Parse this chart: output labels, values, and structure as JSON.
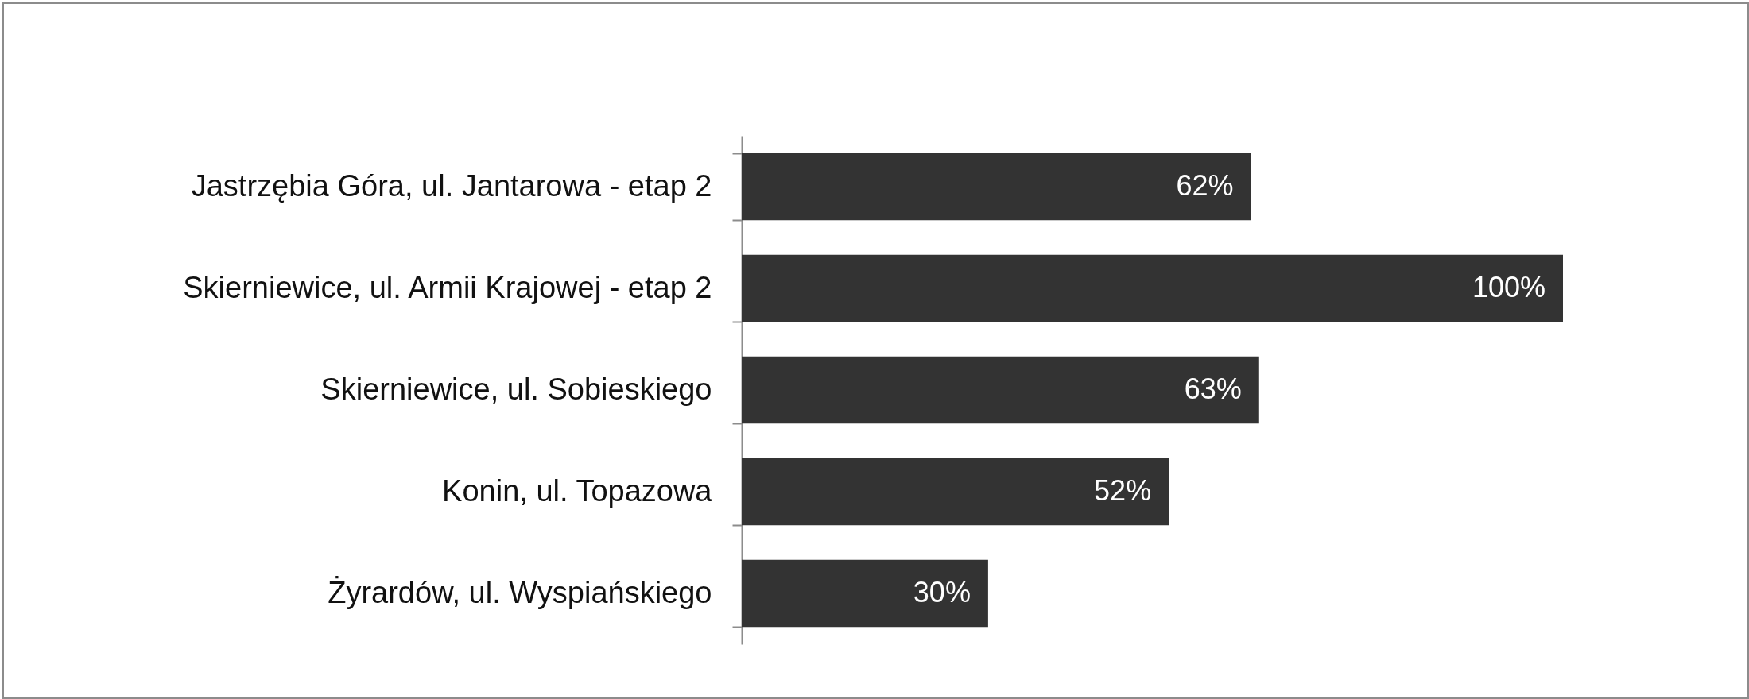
{
  "chart_data": {
    "type": "bar",
    "orientation": "horizontal",
    "categories": [
      "Jastrzębia Góra, ul. Jantarowa - etap 2",
      "Skierniewice, ul. Armii Krajowej - etap 2",
      "Skierniewice, ul. Sobieskiego",
      "Konin, ul. Topazowa",
      "Żyrardów, ul. Wyspiańskiego"
    ],
    "values": [
      62,
      100,
      63,
      52,
      30
    ],
    "value_labels": [
      "62%",
      "100%",
      "63%",
      "52%",
      "30%"
    ],
    "color": "#333333"
  }
}
